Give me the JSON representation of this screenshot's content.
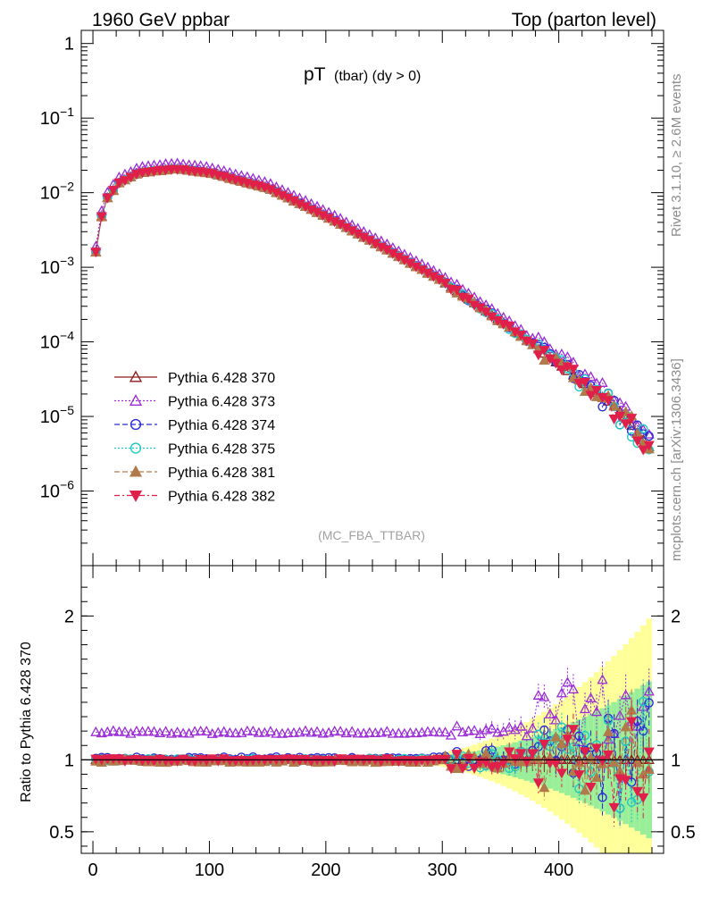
{
  "header": {
    "left": "1960 GeV ppbar",
    "right": "Top (parton level)"
  },
  "chart_data": {
    "type": "scatter",
    "title_main": "pT",
    "title_sub": "(tbar) (dy > 0)",
    "analysis_tag": "(MC_FBA_TTBAR)",
    "side_label_top": "Rivet 3.1.10, ≥ 2.6M events",
    "side_label_bottom": "mcplots.cern.ch [arXiv:1306.3436]",
    "ratio_ylabel": "Ratio to Pythia 6.428 370",
    "xlim": [
      -10,
      490
    ],
    "ylim": [
      1e-07,
      1.5
    ],
    "yscale": "log",
    "ratio_ylim": [
      0.35,
      2.35
    ],
    "x_ticks": [
      "0",
      "100",
      "200",
      "300",
      "400"
    ],
    "y_ticks": [
      "1",
      "10^-1",
      "10^-2",
      "10^-3",
      "10^-4",
      "10^-5",
      "10^-6"
    ],
    "ratio_ticks": [
      "0.5",
      "1",
      "2"
    ],
    "legend_position": "middle-left",
    "series": [
      {
        "name": "Pythia 6.428 370",
        "color": "#8b1a1a",
        "marker": "triangle-up-open",
        "line": "solid"
      },
      {
        "name": "Pythia 6.428 373",
        "color": "#9a2bd6",
        "marker": "triangle-up-open",
        "line": "dotted"
      },
      {
        "name": "Pythia 6.428 374",
        "color": "#2a2ad6",
        "marker": "circle-open",
        "line": "dashed"
      },
      {
        "name": "Pythia 6.428 375",
        "color": "#1ec9c0",
        "marker": "circle-open",
        "line": "dotted"
      },
      {
        "name": "Pythia 6.428 381",
        "color": "#b07a4a",
        "marker": "triangle-up-filled",
        "line": "dashed"
      },
      {
        "name": "Pythia 6.428 382",
        "color": "#e0204a",
        "marker": "triangle-down-filled",
        "line": "dashdot"
      }
    ],
    "x_bin_width": 5,
    "x_first": 2.5,
    "shape": {
      "peak_x": 70,
      "peak_value": 0.021,
      "low_edge_value": 0.0016,
      "value_at_200": 0.0048,
      "value_at_300": 0.00065,
      "value_at_400": 5e-05,
      "value_at_450": 1.3e-05,
      "value_at_480": 3.5e-06
    },
    "ratio_levels": {
      "Pythia 6.428 370": 1.0,
      "Pythia 6.428 373": 1.19,
      "Pythia 6.428 374": 1.01,
      "Pythia 6.428 375": 1.0,
      "Pythia 6.428 381": 0.99,
      "Pythia 6.428 382": 1.0
    }
  }
}
